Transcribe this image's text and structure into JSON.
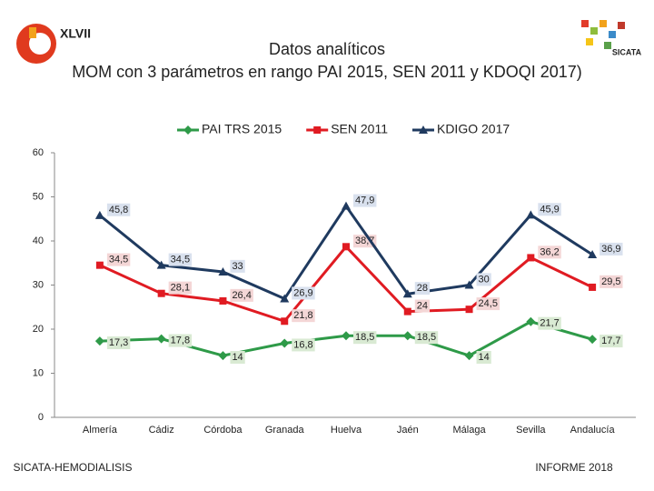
{
  "chart_data": {
    "type": "line",
    "title": "Datos analíticos",
    "subtitle": "MOM con 3 parámetros en rango PAI 2015, SEN 2011 y KDOQI 2017)",
    "categories": [
      "Almería",
      "Cádiz",
      "Córdoba",
      "Granada",
      "Huelva",
      "Jaén",
      "Málaga",
      "Sevilla",
      "Andalucía"
    ],
    "series": [
      {
        "name": "PAI TRS 2015",
        "color": "#2e9a48",
        "marker": "diamond",
        "values": [
          17.3,
          17.8,
          14,
          16.8,
          18.5,
          18.5,
          14,
          21.7,
          17.7
        ],
        "value_labels": [
          "17,3",
          "17,8",
          "14",
          "16,8",
          "18,5",
          "18,5",
          "14",
          "21,7",
          "17,7"
        ]
      },
      {
        "name": "SEN 2011",
        "color": "#e01b22",
        "marker": "square",
        "values": [
          34.5,
          28.1,
          26.4,
          21.8,
          38.7,
          24,
          24.5,
          36.2,
          29.5
        ],
        "value_labels": [
          "34,5",
          "28,1",
          "26,4",
          "21,8",
          "38,7",
          "24",
          "24,5",
          "36,2",
          "29,5"
        ]
      },
      {
        "name": "KDIGO 2017",
        "color": "#1f3a5f",
        "marker": "triangle",
        "values": [
          45.8,
          34.5,
          33,
          26.9,
          47.9,
          28,
          30,
          45.9,
          36.9
        ],
        "value_labels": [
          "45,8",
          "34,5",
          "33",
          "26,9",
          "47,9",
          "28",
          "30",
          "45,9",
          "36,9"
        ]
      }
    ],
    "ylim": [
      0,
      60
    ],
    "yticks": [
      0,
      10,
      20,
      30,
      40,
      50,
      60
    ],
    "grid": false,
    "legend": "top"
  },
  "logos": {
    "left": "XLVII",
    "right": "SICATA"
  },
  "footer": {
    "left": "SICATA-HEMODIALISIS",
    "right": "INFORME 2018"
  }
}
